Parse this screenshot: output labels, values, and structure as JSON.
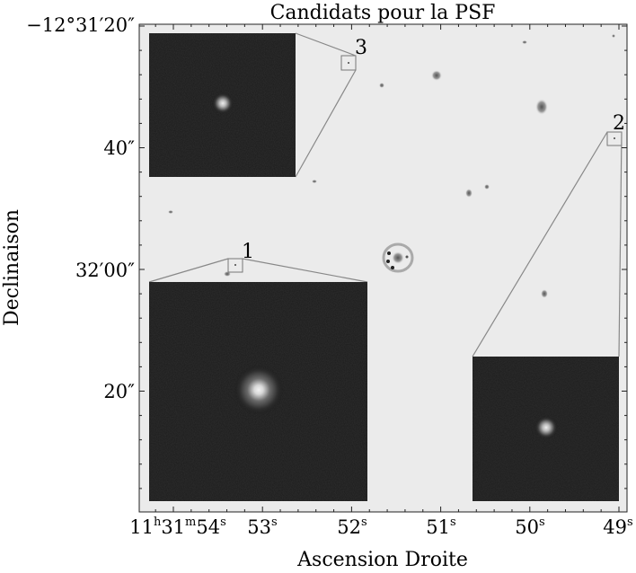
{
  "chart_data": {
    "type": "image",
    "title": "Candidats pour la PSF",
    "xlabel": "Ascension Droite",
    "ylabel": "Declinaison",
    "x_ticks": [
      {
        "h": "11",
        "m": "31",
        "s": "54",
        "hour_tick": true
      },
      {
        "s": "53"
      },
      {
        "s": "52"
      },
      {
        "s": "51"
      },
      {
        "s": "50"
      },
      {
        "s": "49"
      }
    ],
    "y_ticks": [
      {
        "label": "−12°31′20″"
      },
      {
        "label": "40″"
      },
      {
        "label": "32′00″"
      },
      {
        "label": "20″"
      }
    ],
    "psf_candidates": [
      {
        "label": "1"
      },
      {
        "label": "2"
      },
      {
        "label": "3"
      }
    ],
    "colormap": "gray_r",
    "grid": false
  }
}
